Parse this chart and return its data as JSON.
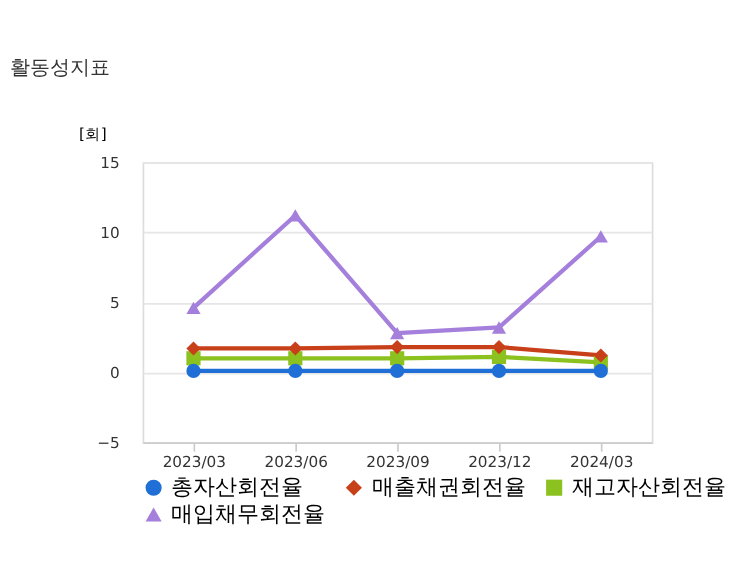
{
  "chart_data": {
    "type": "line",
    "title": "활동성지표",
    "ylabel": "[회]",
    "categories": [
      "2023/03",
      "2023/06",
      "2023/09",
      "2023/12",
      "2024/03"
    ],
    "series": [
      {
        "name": "총자산회전율",
        "color": "#1f6fd6",
        "marker": "circle",
        "values": [
          0.1,
          0.1,
          0.1,
          0.1,
          0.1
        ]
      },
      {
        "name": "매출채권회전율",
        "color": "#c8401a",
        "marker": "diamond",
        "values": [
          1.7,
          1.7,
          1.8,
          1.8,
          1.2
        ]
      },
      {
        "name": "재고자산회전율",
        "color": "#8cc21f",
        "marker": "square",
        "values": [
          1.0,
          1.0,
          1.0,
          1.1,
          0.7
        ]
      },
      {
        "name": "매입채무회전율",
        "color": "#a57fdc",
        "marker": "triangle",
        "values": [
          4.6,
          11.2,
          2.8,
          3.2,
          9.7
        ]
      }
    ],
    "ylim": [
      -5,
      15
    ],
    "yticks": [
      -5,
      0,
      5,
      10,
      15
    ],
    "grid": "y",
    "legend": "bottom"
  }
}
